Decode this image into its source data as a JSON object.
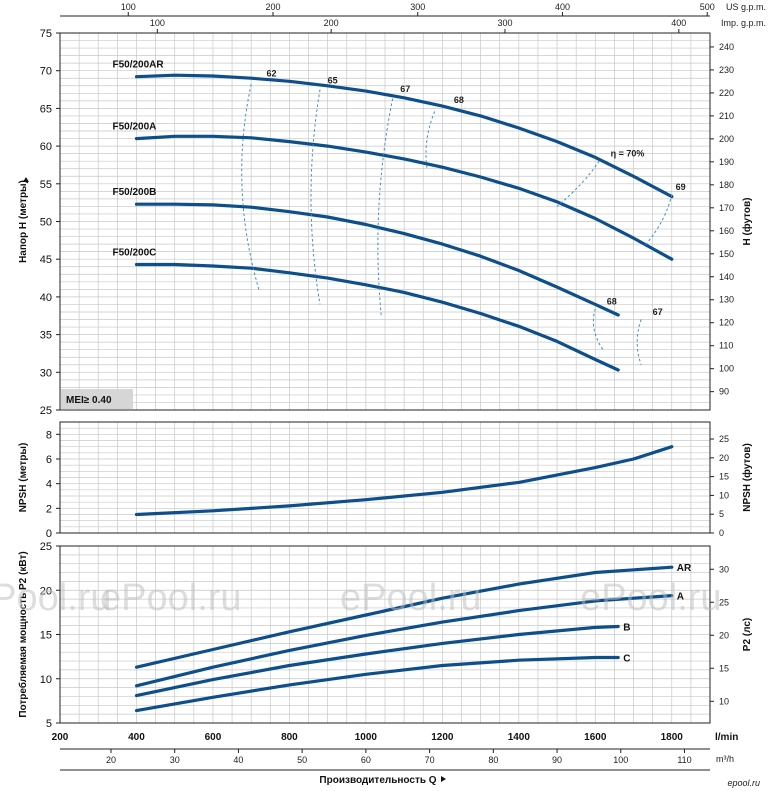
{
  "chart_data": [
    {
      "type": "line",
      "panel": "head",
      "ylabel": "Напор H (метры)",
      "ylabel2": "H (футов)",
      "ylim": [
        25,
        75
      ],
      "y_ticks": [
        25,
        30,
        35,
        40,
        45,
        50,
        55,
        60,
        65,
        70,
        75
      ],
      "y2_ticks": [
        90,
        100,
        110,
        120,
        130,
        140,
        150,
        160,
        170,
        180,
        190,
        200,
        210,
        220,
        230,
        240
      ],
      "series": [
        {
          "name": "F50/200AR",
          "x": [
            400,
            500,
            600,
            700,
            800,
            900,
            1000,
            1100,
            1200,
            1300,
            1400,
            1500,
            1600,
            1700,
            1800
          ],
          "values": [
            69.2,
            69.4,
            69.3,
            69.0,
            68.6,
            68.0,
            67.3,
            66.4,
            65.3,
            64.0,
            62.4,
            60.6,
            58.5,
            56.0,
            53.3
          ]
        },
        {
          "name": "F50/200A",
          "x": [
            400,
            500,
            600,
            700,
            800,
            900,
            1000,
            1100,
            1200,
            1300,
            1400,
            1500,
            1600,
            1700,
            1800
          ],
          "values": [
            61.0,
            61.3,
            61.3,
            61.1,
            60.6,
            60.0,
            59.2,
            58.3,
            57.2,
            55.9,
            54.4,
            52.6,
            50.4,
            47.8,
            45.0
          ]
        },
        {
          "name": "F50/200B",
          "x": [
            400,
            500,
            600,
            700,
            800,
            900,
            1000,
            1100,
            1200,
            1300,
            1400,
            1500,
            1600,
            1660
          ],
          "values": [
            52.3,
            52.3,
            52.2,
            51.9,
            51.3,
            50.6,
            49.6,
            48.4,
            47.0,
            45.4,
            43.5,
            41.3,
            39.0,
            37.6
          ]
        },
        {
          "name": "F50/200C",
          "x": [
            400,
            500,
            600,
            700,
            800,
            900,
            1000,
            1100,
            1200,
            1300,
            1400,
            1500,
            1600,
            1660
          ],
          "values": [
            44.3,
            44.3,
            44.1,
            43.8,
            43.2,
            42.5,
            41.6,
            40.6,
            39.3,
            37.8,
            36.1,
            34.1,
            31.7,
            30.3
          ]
        }
      ],
      "efficiency_labels": [
        "62",
        "65",
        "67",
        "68",
        "η = 70%",
        "69",
        "68",
        "67"
      ],
      "badge": "MEI≥ 0.40"
    },
    {
      "type": "line",
      "panel": "npsh",
      "ylabel": "NPSH (метры)",
      "ylabel2": "NPSH (футов)",
      "ylim": [
        0,
        9
      ],
      "y_ticks": [
        0,
        2,
        4,
        6,
        8
      ],
      "y2_ticks": [
        0,
        5,
        10,
        15,
        20,
        25
      ],
      "series": [
        {
          "x": [
            400,
            600,
            800,
            1000,
            1200,
            1400,
            1600,
            1700,
            1800
          ],
          "values": [
            1.5,
            1.8,
            2.2,
            2.7,
            3.3,
            4.1,
            5.3,
            6.0,
            7.0
          ]
        }
      ]
    },
    {
      "type": "line",
      "panel": "power",
      "ylabel": "Потребляемая мощность P2 (кВт)",
      "ylabel2": "P2 (лс)",
      "ylim": [
        5,
        25
      ],
      "y_ticks": [
        5,
        10,
        15,
        20,
        25
      ],
      "y2_ticks": [
        10,
        15,
        20,
        25,
        30
      ],
      "series": [
        {
          "name": "AR",
          "x": [
            400,
            600,
            800,
            1000,
            1200,
            1400,
            1600,
            1800
          ],
          "values": [
            11.3,
            13.3,
            15.3,
            17.2,
            19.1,
            20.7,
            22.0,
            22.6
          ]
        },
        {
          "name": "A",
          "x": [
            400,
            600,
            800,
            1000,
            1200,
            1400,
            1600,
            1800
          ],
          "values": [
            9.2,
            11.3,
            13.2,
            14.9,
            16.4,
            17.7,
            18.8,
            19.4
          ]
        },
        {
          "name": "B",
          "x": [
            400,
            600,
            800,
            1000,
            1200,
            1400,
            1600,
            1660
          ],
          "values": [
            8.1,
            9.9,
            11.5,
            12.8,
            14.0,
            15.0,
            15.8,
            15.9
          ]
        },
        {
          "name": "C",
          "x": [
            400,
            600,
            800,
            1000,
            1200,
            1400,
            1600,
            1660
          ],
          "values": [
            6.4,
            7.9,
            9.3,
            10.5,
            11.5,
            12.1,
            12.4,
            12.4
          ]
        }
      ]
    }
  ],
  "x_axis": {
    "label": "Производительность Q",
    "lmin_unit": "l/min",
    "m3h_unit": "m³/h",
    "lmin_ticks": [
      200,
      400,
      600,
      800,
      1000,
      1200,
      1400,
      1600,
      1800
    ],
    "m3h_ticks": [
      20,
      30,
      40,
      50,
      60,
      70,
      80,
      90,
      100,
      110
    ],
    "xlim": [
      200,
      1900
    ]
  },
  "top_axes": {
    "us_label": "US g.p.m.",
    "imp_label": "Imp. g.p.m.",
    "us_ticks": [
      100,
      200,
      300,
      400,
      500
    ],
    "imp_ticks": [
      100,
      200,
      300,
      400
    ]
  },
  "watermark": [
    "ePool.ru",
    "ePool.ru",
    "ePool.ru",
    "ePool.ru"
  ],
  "footer_logo": "epool.ru"
}
